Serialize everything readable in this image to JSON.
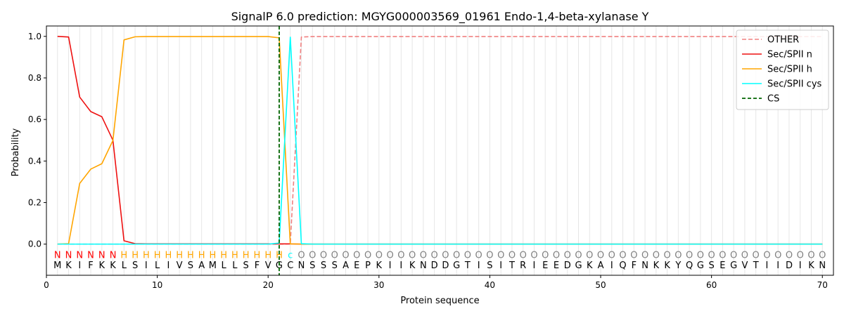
{
  "chart_data": {
    "type": "line",
    "title": "SignalP 6.0 prediction: MGYG000003569_01961 Endo-1,4-beta-xylanase Y",
    "xlabel": "Protein sequence",
    "ylabel": "Probability",
    "xlim": [
      0,
      71
    ],
    "ylim": [
      -0.15,
      1.05
    ],
    "xticks": [
      0,
      10,
      20,
      30,
      40,
      50,
      60,
      70
    ],
    "yticks": [
      0.0,
      0.2,
      0.4,
      0.6,
      0.8,
      1.0
    ],
    "x_tick_labels": [
      "0",
      "10",
      "20",
      "30",
      "40",
      "50",
      "60",
      "70"
    ],
    "y_tick_labels": [
      "0.0",
      "0.2",
      "0.4",
      "0.6",
      "0.8",
      "1.0"
    ],
    "legend_position": "top-right",
    "sequence": [
      "M",
      "K",
      "I",
      "F",
      "K",
      "K",
      "L",
      "S",
      "I",
      "L",
      "I",
      "V",
      "S",
      "A",
      "M",
      "L",
      "L",
      "S",
      "F",
      "V",
      "G",
      "C",
      "N",
      "S",
      "S",
      "S",
      "A",
      "E",
      "P",
      "K",
      "I",
      "I",
      "K",
      "N",
      "D",
      "D",
      "G",
      "T",
      "I",
      "S",
      "I",
      "T",
      "R",
      "I",
      "E",
      "E",
      "D",
      "G",
      "K",
      "A",
      "I",
      "Q",
      "F",
      "N",
      "K",
      "K",
      "Y",
      "Q",
      "G",
      "S",
      "E",
      "G",
      "V",
      "T",
      "I",
      "I",
      "D",
      "I",
      "K",
      "N"
    ],
    "region_labels": [
      "N",
      "N",
      "N",
      "N",
      "N",
      "N",
      "H",
      "H",
      "H",
      "H",
      "H",
      "H",
      "H",
      "H",
      "H",
      "H",
      "H",
      "H",
      "H",
      "H",
      "H",
      "c",
      "O",
      "O",
      "O",
      "O",
      "O",
      "O",
      "O",
      "O",
      "O",
      "O",
      "O",
      "O",
      "O",
      "O",
      "O",
      "O",
      "O",
      "O",
      "O",
      "O",
      "O",
      "O",
      "O",
      "O",
      "O",
      "O",
      "O",
      "O",
      "O",
      "O",
      "O",
      "O",
      "O",
      "O",
      "O",
      "O",
      "O",
      "O",
      "O",
      "O",
      "O",
      "O",
      "O",
      "O",
      "O",
      "O",
      "O",
      "O"
    ],
    "region_colors": {
      "N": "#ff0000",
      "H": "#ffa500",
      "c": "#00ffff",
      "O": "#808080"
    },
    "cs_position": 21,
    "series": [
      {
        "name": "OTHER",
        "color": "#f08080",
        "dash": true,
        "values": [
          0,
          0,
          0,
          0,
          0,
          0,
          0,
          0,
          0,
          0,
          0,
          0,
          0,
          0,
          0,
          0,
          0,
          0,
          0,
          0,
          0,
          0.001,
          0.997,
          0.999,
          0.999,
          0.999,
          0.999,
          0.999,
          0.999,
          0.999,
          0.999,
          0.999,
          0.999,
          0.999,
          0.999,
          0.999,
          0.999,
          0.999,
          0.999,
          0.999,
          0.999,
          0.999,
          0.999,
          0.999,
          0.999,
          0.999,
          0.999,
          0.999,
          0.999,
          0.999,
          0.999,
          0.999,
          0.999,
          0.999,
          0.999,
          0.999,
          0.999,
          0.999,
          0.999,
          0.999,
          0.999,
          0.999,
          0.999,
          0.999,
          0.999,
          0.999,
          0.999,
          0.999,
          0.999,
          0.999
        ]
      },
      {
        "name": "Sec/SPII n",
        "color": "#ee1111",
        "dash": false,
        "values": [
          1.0,
          0.997,
          0.708,
          0.638,
          0.613,
          0.5,
          0.016,
          0.002,
          0.001,
          0.001,
          0.001,
          0.001,
          0.001,
          0.001,
          0.001,
          0.001,
          0.001,
          0.001,
          0.001,
          0.001,
          0.001,
          0.001,
          0,
          0,
          0,
          0,
          0,
          0,
          0,
          0,
          0,
          0,
          0,
          0,
          0,
          0,
          0,
          0,
          0,
          0,
          0,
          0,
          0,
          0,
          0,
          0,
          0,
          0,
          0,
          0,
          0,
          0,
          0,
          0,
          0,
          0,
          0,
          0,
          0,
          0,
          0,
          0,
          0,
          0,
          0,
          0,
          0,
          0,
          0,
          0
        ]
      },
      {
        "name": "Sec/SPII h",
        "color": "#ffa500",
        "dash": false,
        "values": [
          0,
          0.002,
          0.292,
          0.361,
          0.387,
          0.499,
          0.983,
          0.998,
          0.999,
          0.999,
          0.999,
          0.999,
          0.999,
          0.999,
          0.999,
          0.999,
          0.999,
          0.999,
          0.999,
          0.999,
          0.993,
          0.001,
          0,
          0,
          0,
          0,
          0,
          0,
          0,
          0,
          0,
          0,
          0,
          0,
          0,
          0,
          0,
          0,
          0,
          0,
          0,
          0,
          0,
          0,
          0,
          0,
          0,
          0,
          0,
          0,
          0,
          0,
          0,
          0,
          0,
          0,
          0,
          0,
          0,
          0,
          0,
          0,
          0,
          0,
          0,
          0,
          0,
          0,
          0,
          0
        ]
      },
      {
        "name": "Sec/SPII cys",
        "color": "#00ffff",
        "dash": false,
        "values": [
          0,
          0,
          0,
          0,
          0,
          0,
          0,
          0,
          0,
          0,
          0,
          0,
          0,
          0,
          0,
          0,
          0,
          0,
          0,
          0,
          0.005,
          0.996,
          0.002,
          0,
          0,
          0,
          0,
          0,
          0,
          0,
          0,
          0,
          0,
          0,
          0,
          0,
          0,
          0,
          0,
          0,
          0,
          0,
          0,
          0,
          0,
          0,
          0,
          0,
          0,
          0,
          0,
          0,
          0,
          0,
          0,
          0,
          0,
          0,
          0,
          0,
          0,
          0,
          0,
          0,
          0,
          0,
          0,
          0,
          0,
          0
        ]
      },
      {
        "name": "CS",
        "color": "#006400",
        "dash": true,
        "vertical": true
      }
    ]
  }
}
